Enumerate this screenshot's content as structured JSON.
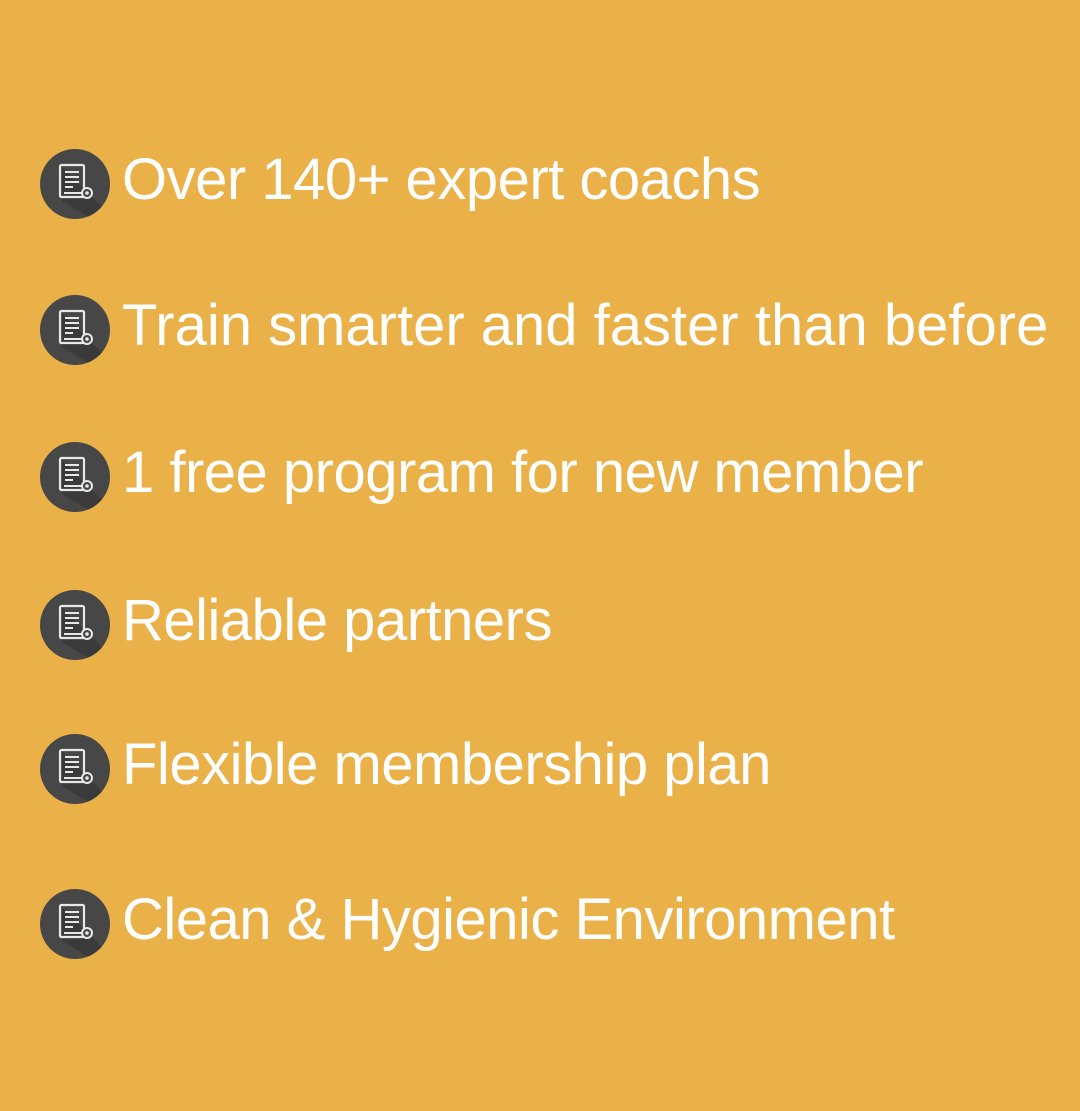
{
  "theme": {
    "background": "#EBB149",
    "badge_color": "#474747",
    "text_color": "#FFFFFF"
  },
  "features": [
    {
      "icon": "document-certificate-icon",
      "text": "Over 140+ expert coachs"
    },
    {
      "icon": "document-certificate-icon",
      "text": "Train smarter and faster than before"
    },
    {
      "icon": "document-certificate-icon",
      "text": "1 free program for new member"
    },
    {
      "icon": "document-certificate-icon",
      "text": "Reliable partners"
    },
    {
      "icon": "document-certificate-icon",
      "text": "Flexible membership plan"
    },
    {
      "icon": "document-certificate-icon",
      "text": "Clean & Hygienic Environment"
    }
  ]
}
